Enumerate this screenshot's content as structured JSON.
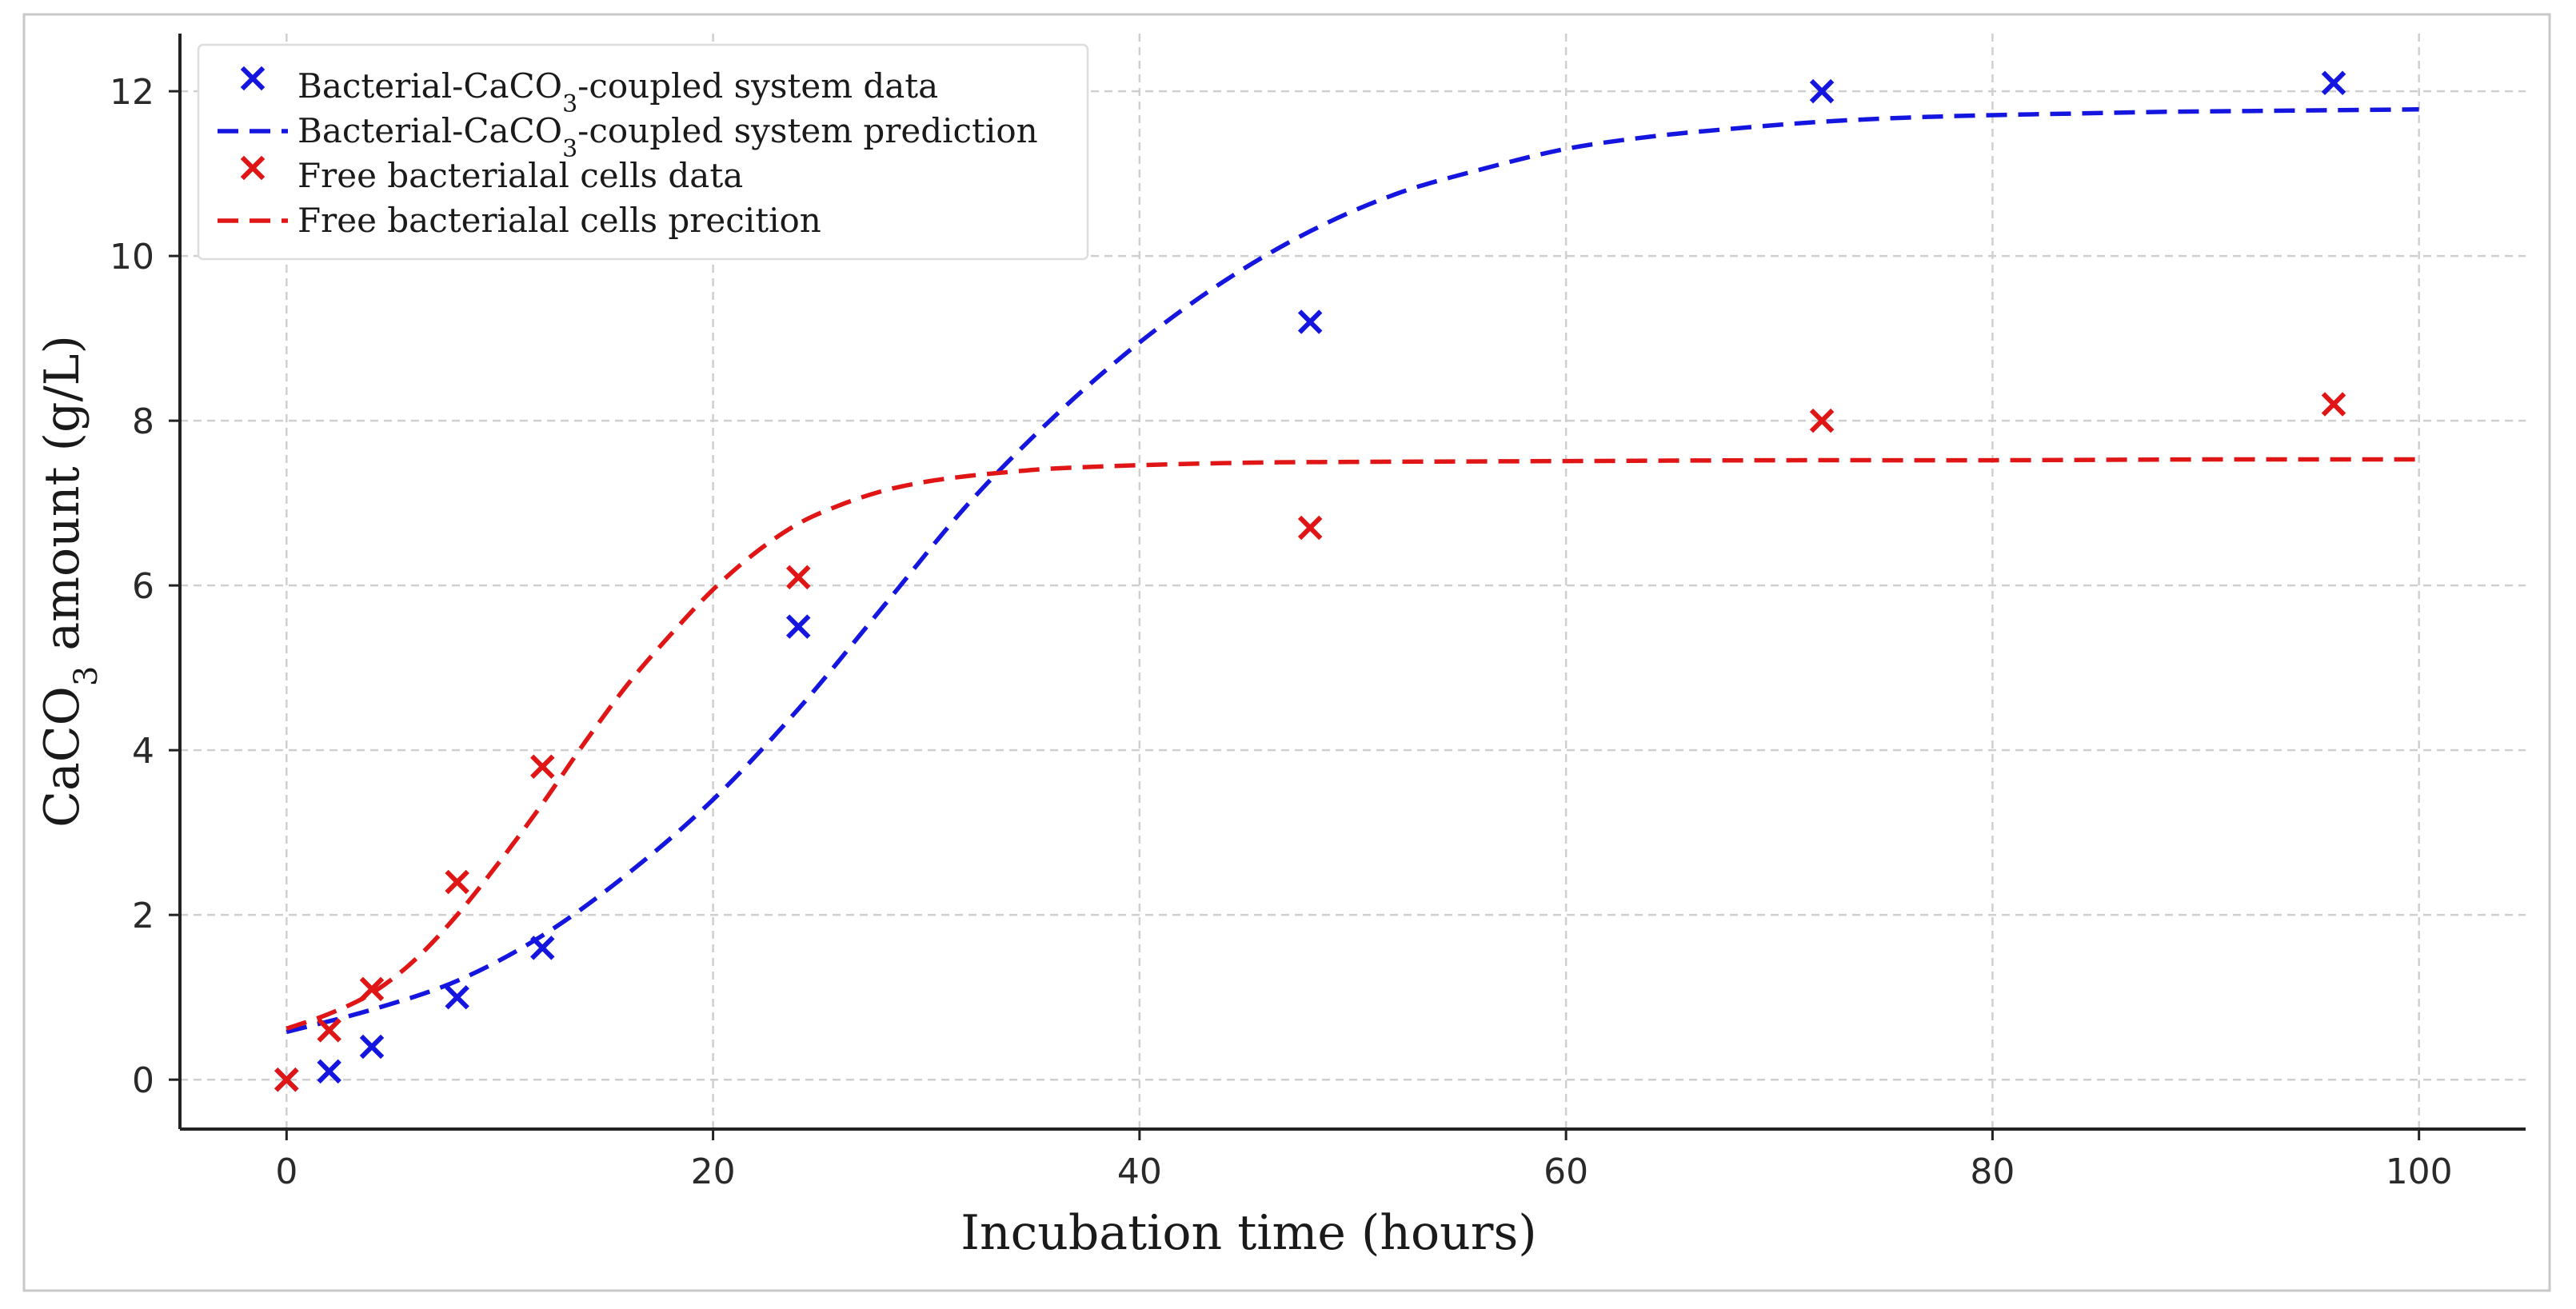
{
  "chart_data": {
    "type": "line",
    "xlabel": "Incubation time (hours)",
    "ylabel": {
      "prefix": "CaCO",
      "sub": "3",
      "suffix": " amount (g/L)"
    },
    "xlim": [
      -5,
      105
    ],
    "ylim": [
      -0.6,
      12.7
    ],
    "xticks": [
      0,
      20,
      40,
      60,
      80,
      100
    ],
    "yticks": [
      0,
      2,
      4,
      6,
      8,
      10,
      12
    ],
    "grid": true,
    "legend_position": "top-left",
    "series": [
      {
        "name": "Bacterial-CaCO3-coupled system data",
        "legend": {
          "before": "Bacterial-CaCO",
          "sub": "3",
          "after": "-coupled system data"
        },
        "kind": "scatter",
        "marker": "x",
        "color": "#1515e0",
        "x": [
          0,
          2,
          4,
          8,
          12,
          24,
          48,
          72,
          96
        ],
        "y": [
          0.0,
          0.1,
          0.4,
          1.0,
          1.6,
          5.5,
          9.2,
          12.0,
          12.1
        ]
      },
      {
        "name": "Bacterial-CaCO3-coupled system prediction",
        "legend": {
          "before": "Bacterial-CaCO",
          "sub": "3",
          "after": "-coupled system prediction"
        },
        "kind": "line",
        "style": "dashed",
        "color": "#1515e0",
        "x": [
          0,
          4,
          8,
          12,
          16,
          20,
          24,
          28,
          32,
          36,
          40,
          44,
          48,
          52,
          56,
          60,
          64,
          68,
          72,
          76,
          80,
          84,
          88,
          92,
          96,
          100
        ],
        "y": [
          0.58,
          0.85,
          1.2,
          1.75,
          2.5,
          3.4,
          4.5,
          5.75,
          7.0,
          8.05,
          8.95,
          9.7,
          10.3,
          10.75,
          11.05,
          11.3,
          11.45,
          11.55,
          11.63,
          11.68,
          11.71,
          11.73,
          11.75,
          11.76,
          11.77,
          11.78
        ]
      },
      {
        "name": "Free bacterialal cells data",
        "legend": {
          "before": "Free bacterialal cells data",
          "sub": "",
          "after": ""
        },
        "kind": "scatter",
        "marker": "x",
        "color": "#e01515",
        "x": [
          0,
          2,
          4,
          8,
          12,
          24,
          48,
          72,
          96
        ],
        "y": [
          0.0,
          0.6,
          1.1,
          2.4,
          3.8,
          6.1,
          6.7,
          8.0,
          8.2
        ]
      },
      {
        "name": "Free bacterialal cells precition",
        "legend": {
          "before": "Free bacterialal cells precition",
          "sub": "",
          "after": ""
        },
        "kind": "line",
        "style": "dashed",
        "color": "#e01515",
        "x": [
          0,
          2,
          4,
          6,
          8,
          10,
          12,
          14,
          16,
          18,
          20,
          22,
          24,
          26,
          28,
          30,
          32,
          34,
          36,
          40,
          45,
          50,
          60,
          70,
          80,
          90,
          100
        ],
        "y": [
          0.62,
          0.8,
          1.05,
          1.45,
          2.0,
          2.65,
          3.35,
          4.1,
          4.8,
          5.4,
          5.95,
          6.4,
          6.75,
          6.98,
          7.15,
          7.26,
          7.33,
          7.38,
          7.42,
          7.46,
          7.49,
          7.5,
          7.51,
          7.52,
          7.52,
          7.53,
          7.53
        ]
      }
    ]
  }
}
